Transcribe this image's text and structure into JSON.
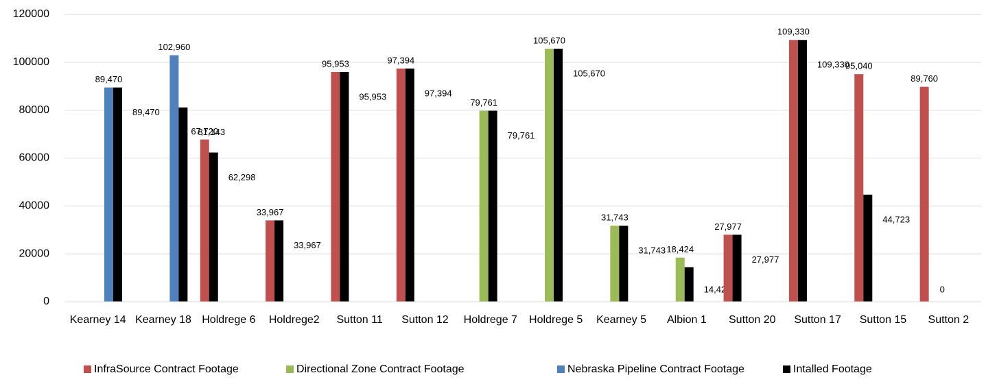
{
  "chart_data": {
    "type": "bar",
    "categories": [
      "Kearney 14",
      "Kearney 18",
      "Holdrege 6",
      "Holdrege2",
      "Sutton 11",
      "Sutton 12",
      "Holdrege 7",
      "Holdrege 5",
      "Kearney 5",
      "Albion 1",
      "Sutton 20",
      "Sutton 17",
      "Sutton 15",
      "Sutton 2"
    ],
    "series": [
      {
        "name": "InfraSource Contract Footage",
        "color": "#c0504d",
        "values": [
          null,
          null,
          67720,
          33967,
          95953,
          97394,
          null,
          null,
          null,
          null,
          27977,
          109330,
          95040,
          89760
        ],
        "value_labels": [
          null,
          null,
          "67,720",
          "33,967",
          "95,953",
          "97,394",
          null,
          null,
          null,
          null,
          "27,977",
          "109,330",
          "95,040",
          "89,760"
        ]
      },
      {
        "name": "Directional Zone Contract Footage",
        "color": "#9bbb59",
        "values": [
          null,
          null,
          null,
          null,
          null,
          null,
          79761,
          105670,
          31743,
          18424,
          null,
          null,
          null,
          null
        ],
        "value_labels": [
          null,
          null,
          null,
          null,
          null,
          null,
          "79,761",
          "105,670",
          "31,743",
          "18,424",
          null,
          null,
          null,
          null
        ]
      },
      {
        "name": "Nebraska Pipeline Contract Footage",
        "color": "#4f81bd",
        "values": [
          89470,
          102960,
          null,
          null,
          null,
          null,
          null,
          null,
          null,
          null,
          null,
          null,
          null,
          null
        ],
        "value_labels": [
          "89,470",
          "102,960",
          null,
          null,
          null,
          null,
          null,
          null,
          null,
          null,
          null,
          null,
          null,
          null
        ]
      },
      {
        "name": "Intalled Footage",
        "color": "#000000",
        "values": [
          89470,
          81143,
          62298,
          33967,
          95953,
          97394,
          79761,
          105670,
          31743,
          14421,
          27977,
          109330,
          44723,
          0
        ],
        "value_labels": [
          "89,470",
          "81,143",
          "62,298",
          "33,967",
          "95,953",
          "97,394",
          "79,761",
          "105,670",
          "31,743",
          "14,421",
          "27,977",
          "109,330",
          "44,723",
          "0"
        ]
      }
    ],
    "ylim": [
      0,
      120000
    ],
    "yticks": [
      0,
      20000,
      40000,
      60000,
      80000,
      100000,
      120000
    ],
    "grid": true,
    "legend": "bottom"
  }
}
